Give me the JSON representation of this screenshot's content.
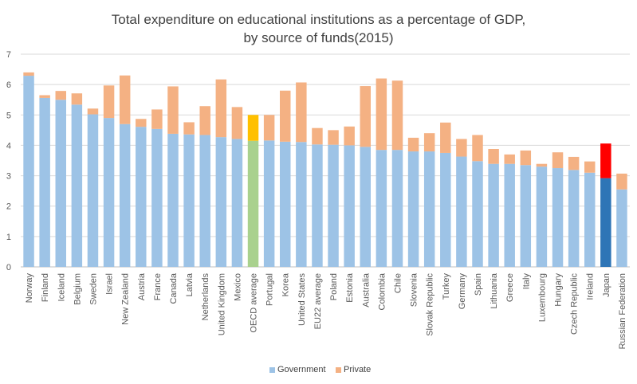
{
  "chart_data": {
    "type": "bar",
    "stacked": true,
    "title": "Total expenditure on educational institutions as a percentage of GDP,",
    "subtitle": "by source of funds(2015)",
    "ylim": [
      0,
      7
    ],
    "yticks": [
      "0",
      "1",
      "2",
      "3",
      "4",
      "5",
      "6",
      "7"
    ],
    "grid": true,
    "legend_position": "bottom",
    "categories": [
      "Norway",
      "Finland",
      "Iceland",
      "Belgium",
      "Sweden",
      "Israel",
      "New Zealand",
      "Austria",
      "France",
      "Canada",
      "Latvia",
      "Netherlands",
      "United Kingdom",
      "Mexico",
      "OECD average",
      "Portugal",
      "Korea",
      "United States",
      "EU22 average",
      "Poland",
      "Estonia",
      "Australia",
      "Colombia",
      "Chile",
      "Slovenia",
      "Slovak Republic",
      "Turkey",
      "Germany",
      "Spain",
      "Lithuania",
      "Greece",
      "Italy",
      "Luxembourg",
      "Hungary",
      "Czech Republic",
      "Ireland",
      "Japan",
      "Russian Federation"
    ],
    "series": [
      {
        "name": "Government",
        "color": "#9dc3e6",
        "values": [
          6.29,
          5.56,
          5.5,
          5.34,
          5.02,
          4.9,
          4.7,
          4.61,
          4.54,
          4.38,
          4.36,
          4.34,
          4.27,
          4.21,
          4.15,
          4.16,
          4.12,
          4.11,
          4.03,
          4.02,
          4.0,
          3.95,
          3.85,
          3.85,
          3.8,
          3.8,
          3.75,
          3.63,
          3.48,
          3.39,
          3.39,
          3.35,
          3.3,
          3.25,
          3.19,
          3.1,
          2.92,
          2.55
        ]
      },
      {
        "name": "Private",
        "color": "#f4b183",
        "values": [
          0.11,
          0.09,
          0.29,
          0.37,
          0.19,
          1.07,
          1.6,
          0.26,
          0.64,
          1.56,
          0.4,
          0.95,
          1.9,
          1.05,
          0.85,
          0.84,
          1.68,
          1.96,
          0.54,
          0.48,
          0.62,
          2.0,
          2.35,
          2.28,
          0.45,
          0.6,
          1.0,
          0.58,
          0.86,
          0.49,
          0.31,
          0.48,
          0.09,
          0.52,
          0.43,
          0.37,
          1.14,
          0.52
        ]
      }
    ],
    "highlights": {
      "OECD average": {
        "Government": "#a9d18e",
        "Private": "#ffc000"
      },
      "Japan": {
        "Government": "#2e75b6",
        "Private": "#ff0000"
      }
    }
  }
}
